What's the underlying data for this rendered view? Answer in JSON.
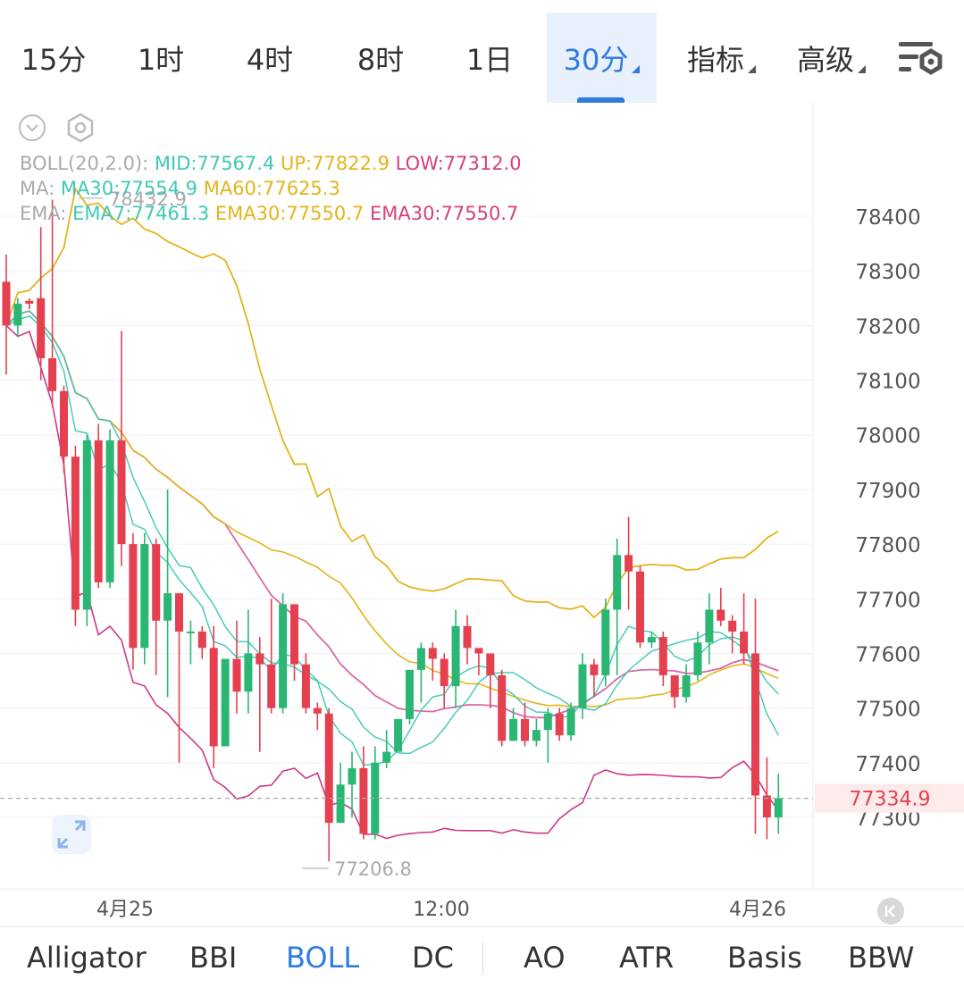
{
  "toolbar": {
    "timeframes": [
      "15分",
      "1时",
      "4时",
      "8时",
      "1日",
      "30分"
    ],
    "menus": [
      "指标",
      "高级"
    ]
  },
  "legend": {
    "boll": {
      "prefix": "BOLL(20,2.0):",
      "mid": "MID:77567.4",
      "up": "UP:77822.9",
      "low": "LOW:77312.0"
    },
    "ma": {
      "prefix": "MA:",
      "ma30": "MA30:77554.9",
      "ma60": "MA60:77625.3"
    },
    "ema": {
      "prefix": "EMA:",
      "ema7": "EMA7:77461.3",
      "ema30a": "EMA30:77550.7",
      "ema30b": "EMA30:77550.7"
    }
  },
  "colors": {
    "up": "#2bb673",
    "down": "#e4404f",
    "mid": "#d96aa8",
    "band": "#e3b41c",
    "low": "#cc3a86",
    "teal": "#3ec9b4",
    "accent": "#2f7be0"
  },
  "price_axis": {
    "ticks": [
      "78400",
      "78300",
      "78200",
      "78100",
      "78000",
      "77900",
      "77800",
      "77700",
      "77600",
      "77500",
      "77400",
      "77300"
    ]
  },
  "current_price": "77334.9",
  "annotations": {
    "high": "78432.9",
    "low": "77206.8"
  },
  "time_axis": [
    "4月25",
    "12:00",
    "4月26"
  ],
  "indicators": [
    "Alligator",
    "BBI",
    "BOLL",
    "DC",
    "AO",
    "ATR",
    "Basis",
    "BBW"
  ],
  "chart_data": {
    "type": "candlestick",
    "ylim": [
      77200,
      78440
    ],
    "candles": [
      [
        78280,
        78200,
        78330,
        78110
      ],
      [
        78200,
        78240,
        78250,
        78180
      ],
      [
        78245,
        78240,
        78250,
        78230
      ],
      [
        78250,
        78140,
        78380,
        78100
      ],
      [
        78140,
        78080,
        78430,
        78050
      ],
      [
        78080,
        77960,
        78090,
        77930
      ],
      [
        77960,
        77680,
        77980,
        77650
      ],
      [
        77680,
        77990,
        78000,
        77650
      ],
      [
        77990,
        77730,
        78020,
        77720
      ],
      [
        77730,
        77990,
        78010,
        77720
      ],
      [
        77990,
        77800,
        78190,
        77760
      ],
      [
        77800,
        77610,
        77820,
        77570
      ],
      [
        77610,
        77800,
        77820,
        77580
      ],
      [
        77800,
        77660,
        77810,
        77560
      ],
      [
        77660,
        77710,
        77900,
        77520
      ],
      [
        77710,
        77640,
        77700,
        77400
      ],
      [
        77640,
        77640,
        77660,
        77580
      ],
      [
        77640,
        77610,
        77650,
        77590
      ],
      [
        77610,
        77430,
        77650,
        77390
      ],
      [
        77430,
        77590,
        77580,
        77470
      ],
      [
        77590,
        77530,
        77660,
        77490
      ],
      [
        77530,
        77600,
        77680,
        77490
      ],
      [
        77600,
        77580,
        77630,
        77420
      ],
      [
        77580,
        77500,
        77700,
        77490
      ],
      [
        77500,
        77690,
        77710,
        77490
      ],
      [
        77690,
        77580,
        77690,
        77550
      ],
      [
        77580,
        77500,
        77600,
        77490
      ],
      [
        77500,
        77490,
        77510,
        77460
      ],
      [
        77490,
        77290,
        77500,
        77220
      ],
      [
        77290,
        77360,
        77400,
        77290
      ],
      [
        77360,
        77390,
        77420,
        77300
      ],
      [
        77390,
        77270,
        77430,
        77260
      ],
      [
        77270,
        77400,
        77430,
        77260
      ],
      [
        77400,
        77420,
        77460,
        77390
      ],
      [
        77420,
        77480,
        77470,
        77430
      ],
      [
        77480,
        77570,
        77540,
        77470
      ],
      [
        77570,
        77610,
        77620,
        77510
      ],
      [
        77610,
        77590,
        77620,
        77550
      ],
      [
        77590,
        77540,
        77600,
        77500
      ],
      [
        77540,
        77650,
        77680,
        77500
      ],
      [
        77650,
        77610,
        77670,
        77580
      ],
      [
        77610,
        77600,
        77600,
        77560
      ],
      [
        77600,
        77560,
        77570,
        77500
      ],
      [
        77560,
        77440,
        77570,
        77430
      ],
      [
        77440,
        77480,
        77500,
        77440
      ],
      [
        77480,
        77440,
        77510,
        77430
      ],
      [
        77440,
        77460,
        77480,
        77430
      ],
      [
        77460,
        77490,
        77500,
        77400
      ],
      [
        77490,
        77450,
        77500,
        77440
      ],
      [
        77450,
        77500,
        77510,
        77440
      ],
      [
        77500,
        77580,
        77600,
        77480
      ],
      [
        77580,
        77560,
        77590,
        77520
      ],
      [
        77560,
        77680,
        77700,
        77540
      ],
      [
        77680,
        77780,
        77810,
        77560
      ],
      [
        77780,
        77750,
        77850,
        77680
      ],
      [
        77750,
        77620,
        77760,
        77610
      ],
      [
        77620,
        77630,
        77640,
        77610
      ],
      [
        77630,
        77560,
        77640,
        77540
      ],
      [
        77560,
        77520,
        77560,
        77500
      ],
      [
        77520,
        77560,
        77580,
        77510
      ],
      [
        77560,
        77620,
        77640,
        77550
      ],
      [
        77620,
        77680,
        77710,
        77580
      ],
      [
        77680,
        77660,
        77720,
        77650
      ],
      [
        77660,
        77640,
        77670,
        77600
      ],
      [
        77640,
        77600,
        77710,
        77580
      ],
      [
        77600,
        77340,
        77700,
        77270
      ],
      [
        77340,
        77300,
        77410,
        77260
      ],
      [
        77300,
        77335,
        77380,
        77270
      ]
    ]
  }
}
